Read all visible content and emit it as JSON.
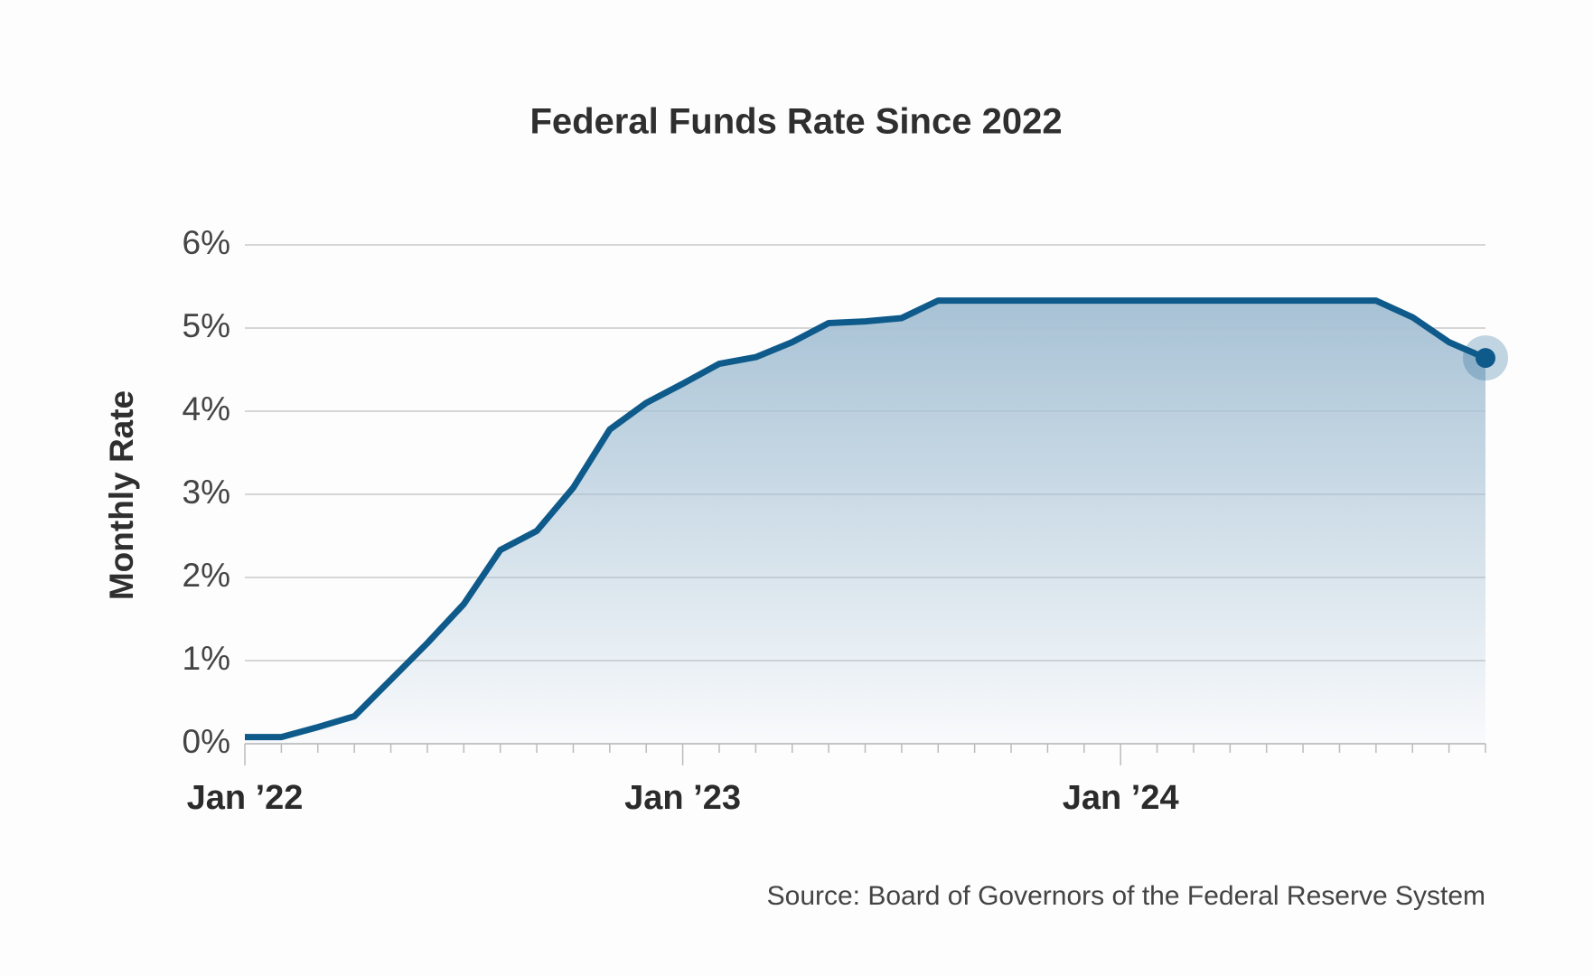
{
  "chart_data": {
    "type": "area",
    "title": "Federal Funds Rate Since 2022",
    "y_label": "Monthly Rate",
    "source": "Source: Board of Governors of the Federal Reserve System",
    "categories": [
      "Jan ’22",
      null,
      null,
      null,
      null,
      null,
      null,
      null,
      null,
      null,
      null,
      null,
      "Jan ’23",
      null,
      null,
      null,
      null,
      null,
      null,
      null,
      null,
      null,
      null,
      null,
      "Jan ’24",
      null,
      null,
      null,
      null,
      null,
      null,
      null,
      null,
      null,
      null
    ],
    "values": [
      0.08,
      0.08,
      0.2,
      0.33,
      0.77,
      1.21,
      1.68,
      2.33,
      2.56,
      3.08,
      3.78,
      4.1,
      4.33,
      4.57,
      4.65,
      4.83,
      5.06,
      5.08,
      5.12,
      5.33,
      5.33,
      5.33,
      5.33,
      5.33,
      5.33,
      5.33,
      5.33,
      5.33,
      5.33,
      5.33,
      5.33,
      5.33,
      5.13,
      4.83,
      4.64
    ],
    "color": "#0e5a8a",
    "ylim": [
      0,
      6
    ],
    "yticks": [
      {
        "value": 0,
        "label": "0%"
      },
      {
        "value": 1,
        "label": "1%"
      },
      {
        "value": 2,
        "label": "2%"
      },
      {
        "value": 3,
        "label": "3%"
      },
      {
        "value": 4,
        "label": "4%"
      },
      {
        "value": 5,
        "label": "5%"
      },
      {
        "value": 6,
        "label": "6%"
      }
    ],
    "grid": true
  }
}
